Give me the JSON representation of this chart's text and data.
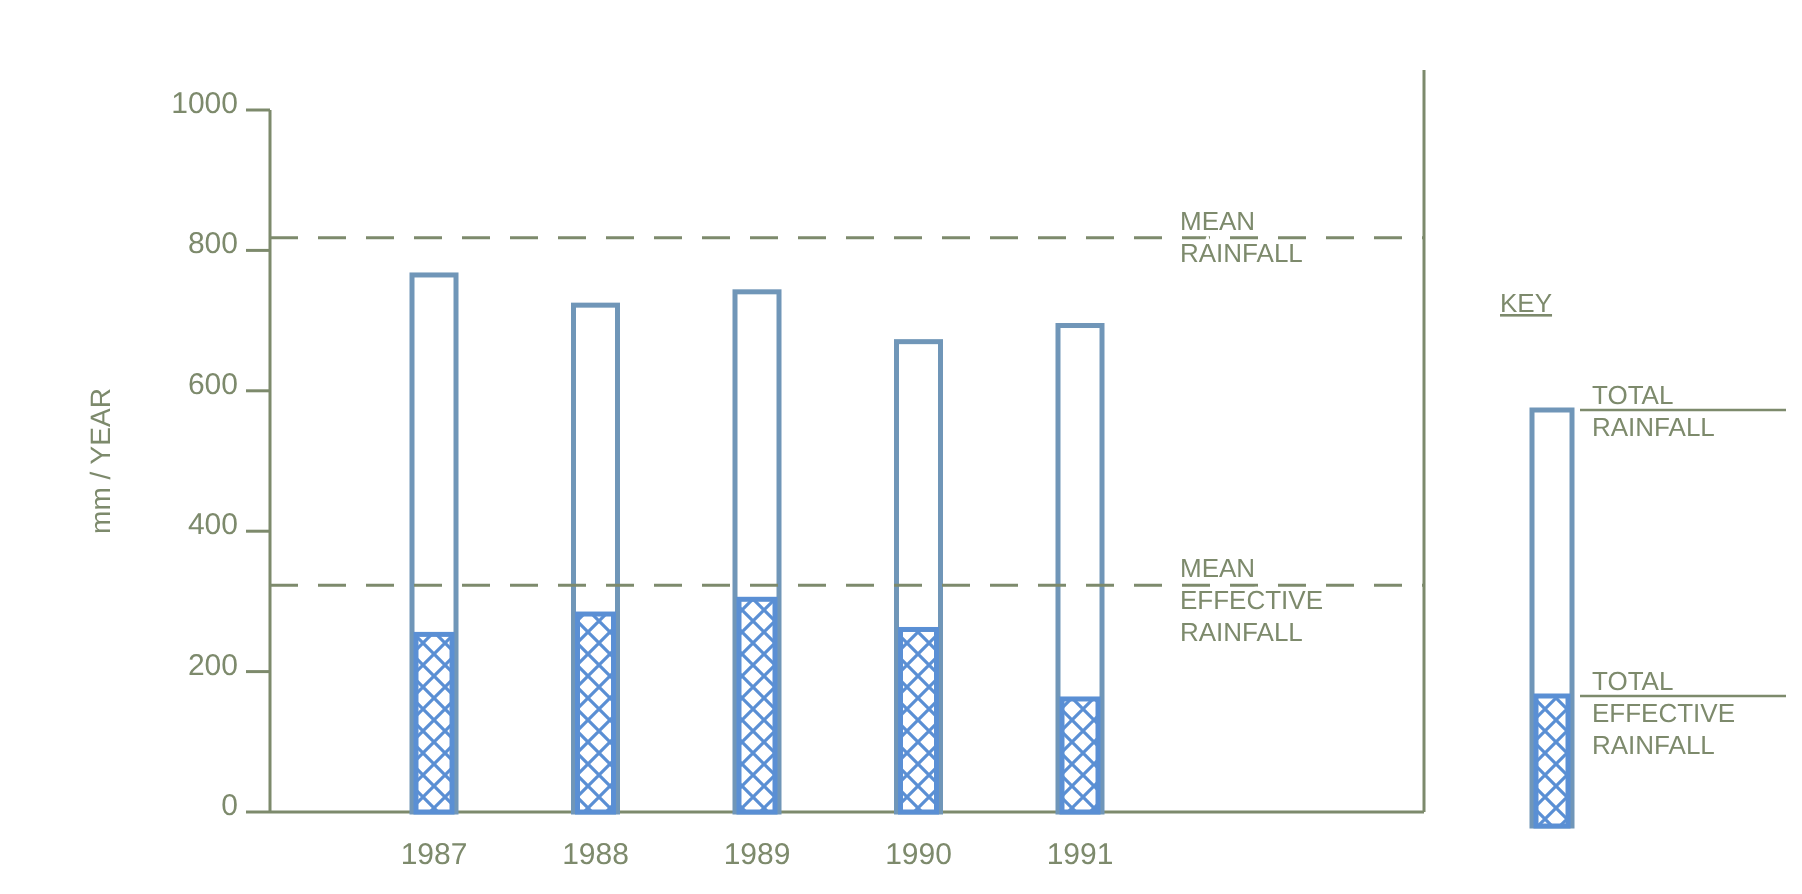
{
  "chart_data": {
    "type": "bar",
    "ylabel": "mm / YEAR",
    "legend_title": "KEY",
    "legend": "right",
    "line_style": "dashed",
    "categories": [
      "1987",
      "1988",
      "1989",
      "1990",
      "1991"
    ],
    "series": [
      {
        "name": "TOTAL RAINFALL",
        "color": "#7096b8",
        "values": [
          765,
          722,
          741,
          670,
          693
        ]
      },
      {
        "name": "TOTAL EFFECTIVE RAINFALL",
        "color": "#5a8fd4",
        "values": [
          253,
          282,
          303,
          260,
          161
        ]
      }
    ],
    "ylim": [
      0,
      1000
    ],
    "yticks": [
      0,
      200,
      400,
      600,
      800,
      1000
    ],
    "ref_lines": [
      {
        "axis": "y",
        "value": 818,
        "label": "MEAN RAINFALL"
      },
      {
        "axis": "y",
        "value": 323,
        "label": "MEAN EFFECTIVE RAINFALL"
      }
    ]
  }
}
